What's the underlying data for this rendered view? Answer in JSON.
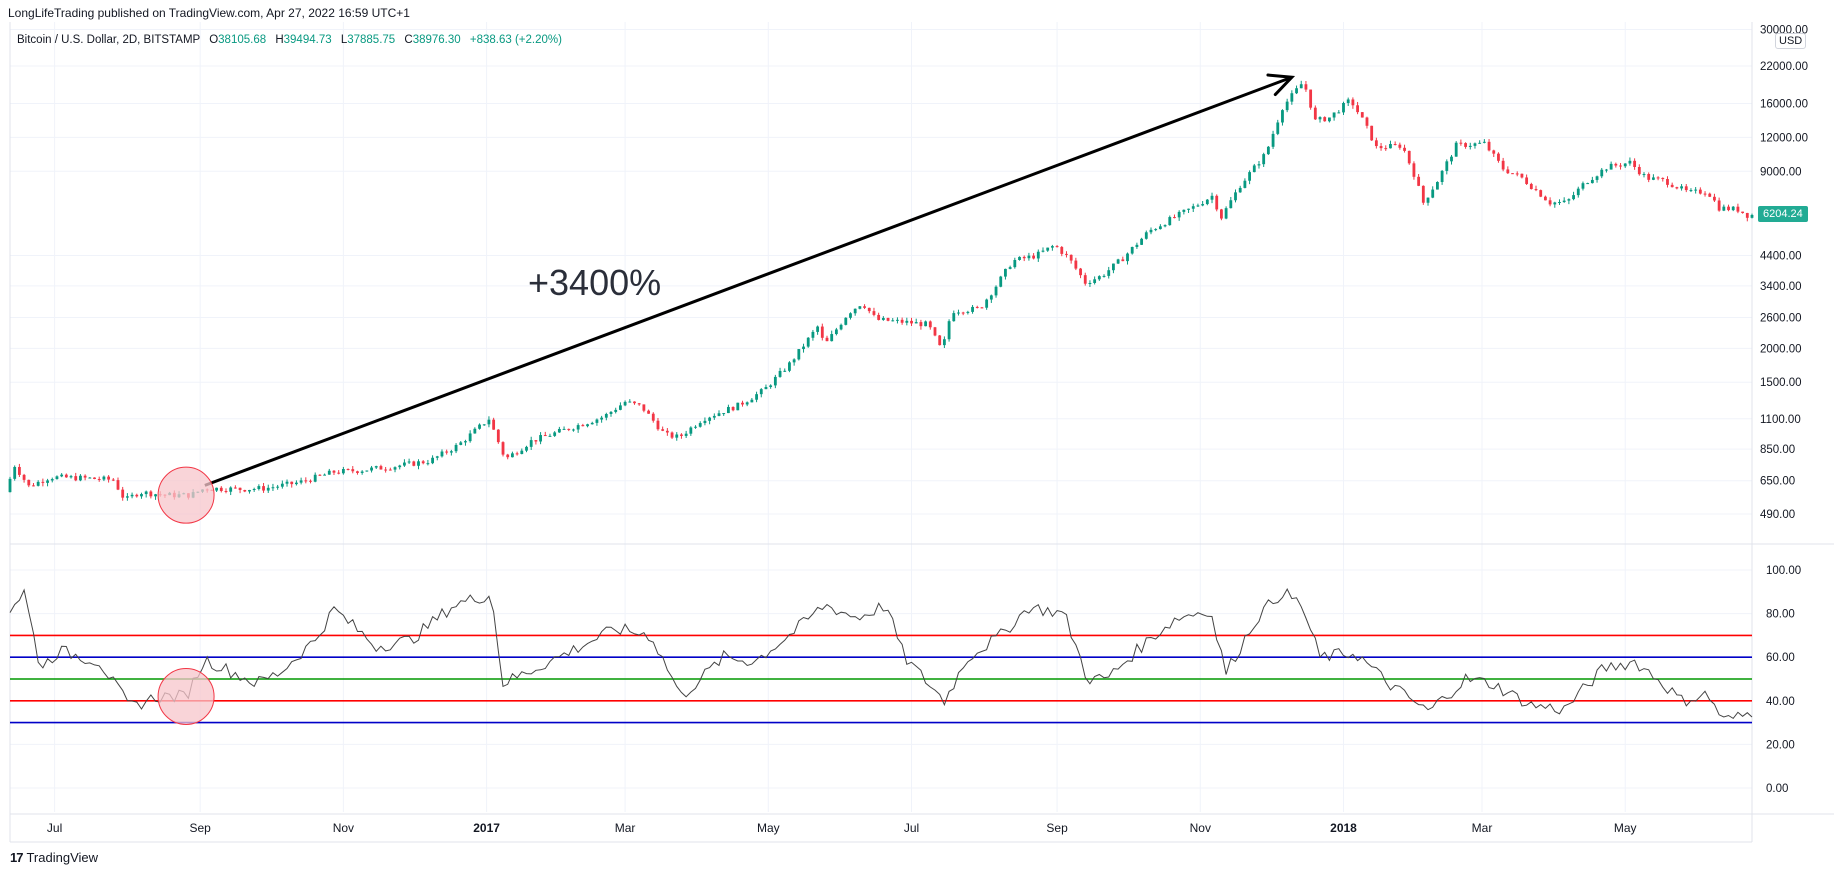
{
  "header": {
    "published": "LongLifeTrading published on TradingView.com, Apr 27, 2022 16:59 UTC+1"
  },
  "legend": {
    "symbol": "Bitcoin / U.S. Dollar, 2D, BITSTAMP",
    "open_label": "O",
    "open": "38105.68",
    "high_label": "H",
    "high": "39494.73",
    "low_label": "L",
    "low": "37885.75",
    "close_label": "C",
    "close": "38976.30",
    "change": "+838.63 (+2.20%)"
  },
  "annotation": {
    "text": "+3400%"
  },
  "currency": "USD",
  "last_price": "6204.24",
  "footer": {
    "logo": "17",
    "brand": "TradingView"
  },
  "colors": {
    "up": "#089981",
    "down": "#f23645",
    "arrow": "#000000",
    "highlight_fill": "#f7c5cb",
    "highlight_stroke": "#f23645",
    "rsi_line": "#444444",
    "line_red": "#ff0000",
    "line_blue": "#0000c8",
    "line_green": "#009900",
    "last_price_bg": "#22ab94"
  },
  "chart_data": [
    {
      "type": "candlestick",
      "title": "Bitcoin / U.S. Dollar, 2D, BITSTAMP",
      "y_scale": "log",
      "y_ticks": [
        490,
        650,
        850,
        1100,
        1500,
        2000,
        2600,
        3400,
        4400,
        9000,
        12000,
        16000,
        22000,
        30000
      ],
      "y_tick_labels": [
        "490.00",
        "650.00",
        "850.00",
        "1100.00",
        "1500.00",
        "2000.00",
        "2600.00",
        "3400.00",
        "4400.00",
        "9000.00",
        "12000.00",
        "16000.00",
        "22000.00",
        "30000.00"
      ],
      "x_labels": [
        "Jul",
        "Sep",
        "Nov",
        "2017",
        "Mar",
        "May",
        "Jul",
        "Sep",
        "Nov",
        "2018",
        "Mar",
        "May"
      ],
      "x_label_dates": [
        "2016-07-01",
        "2016-09-01",
        "2016-11-01",
        "2017-01-01",
        "2017-03-01",
        "2017-05-01",
        "2017-07-01",
        "2017-09-01",
        "2017-11-01",
        "2018-01-01",
        "2018-03-01",
        "2018-05-01"
      ],
      "x_range": [
        "2016-06-12",
        "2018-06-24"
      ],
      "price_path": [
        [
          "2016-06-12",
          590
        ],
        [
          "2016-06-16",
          740
        ],
        [
          "2016-06-22",
          620
        ],
        [
          "2016-07-01",
          670
        ],
        [
          "2016-07-15",
          665
        ],
        [
          "2016-07-28",
          655
        ],
        [
          "2016-08-02",
          550
        ],
        [
          "2016-08-08",
          590
        ],
        [
          "2016-08-20",
          575
        ],
        [
          "2016-08-30",
          575
        ],
        [
          "2016-09-05",
          610
        ],
        [
          "2016-09-20",
          605
        ],
        [
          "2016-10-01",
          610
        ],
        [
          "2016-10-15",
          640
        ],
        [
          "2016-10-30",
          700
        ],
        [
          "2016-11-10",
          710
        ],
        [
          "2016-11-25",
          735
        ],
        [
          "2016-12-10",
          770
        ],
        [
          "2016-12-22",
          880
        ],
        [
          "2017-01-04",
          1100
        ],
        [
          "2017-01-11",
          780
        ],
        [
          "2017-01-22",
          910
        ],
        [
          "2017-02-05",
          1000
        ],
        [
          "2017-02-22",
          1120
        ],
        [
          "2017-03-03",
          1270
        ],
        [
          "2017-03-10",
          1220
        ],
        [
          "2017-03-20",
          960
        ],
        [
          "2017-03-26",
          940
        ],
        [
          "2017-04-05",
          1100
        ],
        [
          "2017-04-20",
          1230
        ],
        [
          "2017-05-01",
          1400
        ],
        [
          "2017-05-12",
          1750
        ],
        [
          "2017-05-24",
          2400
        ],
        [
          "2017-05-27",
          2050
        ],
        [
          "2017-06-06",
          2700
        ],
        [
          "2017-06-12",
          2950
        ],
        [
          "2017-06-18",
          2550
        ],
        [
          "2017-06-30",
          2500
        ],
        [
          "2017-07-10",
          2450
        ],
        [
          "2017-07-16",
          1950
        ],
        [
          "2017-07-20",
          2750
        ],
        [
          "2017-08-01",
          2800
        ],
        [
          "2017-08-08",
          3400
        ],
        [
          "2017-08-15",
          4200
        ],
        [
          "2017-08-25",
          4400
        ],
        [
          "2017-09-02",
          4800
        ],
        [
          "2017-09-08",
          4300
        ],
        [
          "2017-09-15",
          3500
        ],
        [
          "2017-09-22",
          3700
        ],
        [
          "2017-10-01",
          4300
        ],
        [
          "2017-10-12",
          5400
        ],
        [
          "2017-10-20",
          5900
        ],
        [
          "2017-11-01",
          6700
        ],
        [
          "2017-11-08",
          7300
        ],
        [
          "2017-11-12",
          6100
        ],
        [
          "2017-11-20",
          8000
        ],
        [
          "2017-12-01",
          10500
        ],
        [
          "2017-12-08",
          15500
        ],
        [
          "2017-12-17",
          19300
        ],
        [
          "2017-12-22",
          13800
        ],
        [
          "2017-12-28",
          14200
        ],
        [
          "2018-01-06",
          16500
        ],
        [
          "2018-01-12",
          13500
        ],
        [
          "2018-01-17",
          11000
        ],
        [
          "2018-01-28",
          11200
        ],
        [
          "2018-02-02",
          8800
        ],
        [
          "2018-02-06",
          6900
        ],
        [
          "2018-02-12",
          8300
        ],
        [
          "2018-02-20",
          11200
        ],
        [
          "2018-03-04",
          11400
        ],
        [
          "2018-03-12",
          9200
        ],
        [
          "2018-03-20",
          8500
        ],
        [
          "2018-04-01",
          6900
        ],
        [
          "2018-04-08",
          6900
        ],
        [
          "2018-04-16",
          8200
        ],
        [
          "2018-04-25",
          9300
        ],
        [
          "2018-05-05",
          9700
        ],
        [
          "2018-05-12",
          8500
        ],
        [
          "2018-05-20",
          8300
        ],
        [
          "2018-05-30",
          7500
        ],
        [
          "2018-06-07",
          7600
        ],
        [
          "2018-06-12",
          6600
        ],
        [
          "2018-06-20",
          6500
        ],
        [
          "2018-06-24",
          6204.24
        ]
      ],
      "last_price": 6204.24,
      "annotations": [
        {
          "kind": "arrow",
          "from": [
            "2016-09-03",
            625
          ],
          "to": [
            "2017-12-10",
            20000
          ]
        },
        {
          "kind": "circle",
          "center": [
            "2016-08-26",
            575
          ]
        },
        {
          "kind": "text",
          "text": "+3400%",
          "at": [
            "2017-02-20",
            3200
          ]
        }
      ]
    },
    {
      "type": "line",
      "title": "",
      "y_ticks": [
        0,
        20,
        40,
        60,
        80,
        100
      ],
      "y_tick_labels": [
        "0.00",
        "20.00",
        "40.00",
        "60.00",
        "80.00",
        "100.00"
      ],
      "horizontal_lines": [
        {
          "value": 70,
          "color": "#ff0000"
        },
        {
          "value": 60,
          "color": "#0000c8"
        },
        {
          "value": 50,
          "color": "#009900"
        },
        {
          "value": 40,
          "color": "#ff0000"
        },
        {
          "value": 30,
          "color": "#0000c8"
        }
      ],
      "path": [
        [
          "2016-06-12",
          82
        ],
        [
          "2016-06-18",
          90
        ],
        [
          "2016-06-25",
          55
        ],
        [
          "2016-07-03",
          63
        ],
        [
          "2016-07-20",
          58
        ],
        [
          "2016-08-02",
          37
        ],
        [
          "2016-08-14",
          42
        ],
        [
          "2016-08-26",
          42
        ],
        [
          "2016-09-03",
          59
        ],
        [
          "2016-09-25",
          48
        ],
        [
          "2016-10-05",
          53
        ],
        [
          "2016-10-20",
          68
        ],
        [
          "2016-10-28",
          82
        ],
        [
          "2016-11-15",
          65
        ],
        [
          "2016-11-30",
          68
        ],
        [
          "2016-12-18",
          84
        ],
        [
          "2017-01-03",
          89
        ],
        [
          "2017-01-08",
          48
        ],
        [
          "2017-01-22",
          55
        ],
        [
          "2017-02-10",
          65
        ],
        [
          "2017-02-25",
          73
        ],
        [
          "2017-03-12",
          70
        ],
        [
          "2017-03-25",
          42
        ],
        [
          "2017-04-12",
          60
        ],
        [
          "2017-04-25",
          58
        ],
        [
          "2017-05-10",
          70
        ],
        [
          "2017-05-25",
          84
        ],
        [
          "2017-06-08",
          78
        ],
        [
          "2017-06-20",
          84
        ],
        [
          "2017-06-28",
          60
        ],
        [
          "2017-07-15",
          40
        ],
        [
          "2017-07-25",
          60
        ],
        [
          "2017-08-08",
          70
        ],
        [
          "2017-08-20",
          83
        ],
        [
          "2017-09-04",
          80
        ],
        [
          "2017-09-14",
          50
        ],
        [
          "2017-09-22",
          50
        ],
        [
          "2017-10-10",
          68
        ],
        [
          "2017-10-22",
          78
        ],
        [
          "2017-11-05",
          82
        ],
        [
          "2017-11-12",
          53
        ],
        [
          "2017-11-25",
          78
        ],
        [
          "2017-12-06",
          90
        ],
        [
          "2017-12-14",
          84
        ],
        [
          "2017-12-22",
          60
        ],
        [
          "2018-01-06",
          62
        ],
        [
          "2018-01-20",
          48
        ],
        [
          "2018-02-06",
          35
        ],
        [
          "2018-02-22",
          50
        ],
        [
          "2018-03-05",
          48
        ],
        [
          "2018-03-22",
          38
        ],
        [
          "2018-04-05",
          36
        ],
        [
          "2018-04-22",
          55
        ],
        [
          "2018-05-05",
          58
        ],
        [
          "2018-05-15",
          50
        ],
        [
          "2018-05-25",
          40
        ],
        [
          "2018-06-05",
          43
        ],
        [
          "2018-06-12",
          31
        ],
        [
          "2018-06-20",
          33
        ],
        [
          "2018-06-24",
          35
        ]
      ],
      "annotations": [
        {
          "kind": "circle",
          "center": [
            "2016-08-26",
            42
          ]
        }
      ]
    }
  ]
}
